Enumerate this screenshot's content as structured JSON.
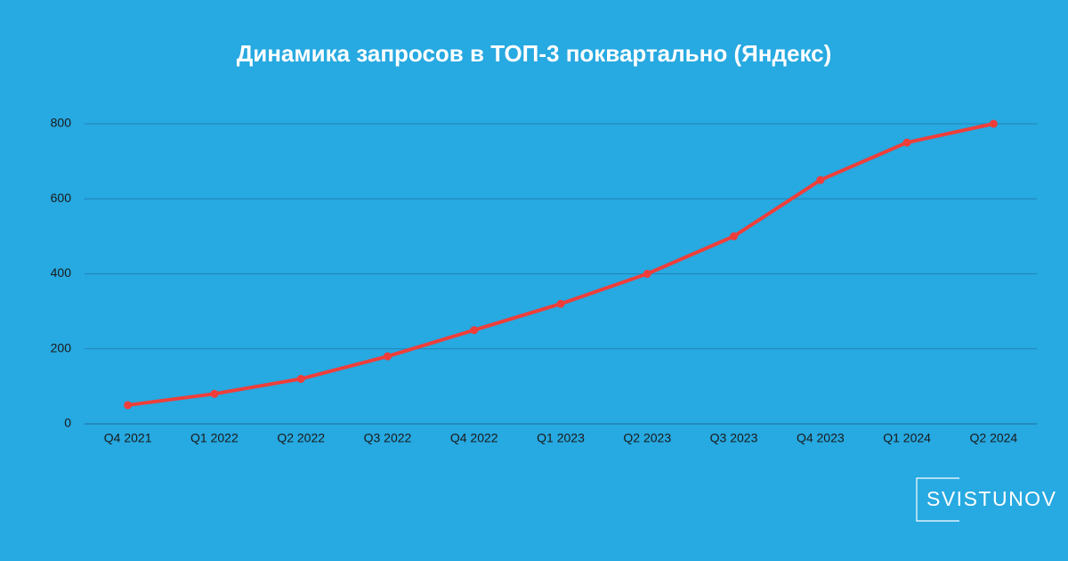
{
  "chart_data": {
    "type": "line",
    "title": "Динамика запросов в ТОП-3 поквартально (Яндекс)",
    "categories": [
      "Q4 2021",
      "Q1 2022",
      "Q2 2022",
      "Q3 2022",
      "Q4 2022",
      "Q1 2023",
      "Q2 2023",
      "Q3 2023",
      "Q4 2023",
      "Q1 2024",
      "Q2 2024"
    ],
    "values": [
      50,
      80,
      120,
      180,
      250,
      320,
      400,
      500,
      650,
      750,
      800
    ],
    "color": "#ef3e3a",
    "ylim": [
      0,
      800
    ],
    "yticks": [
      0,
      200,
      400,
      600,
      800
    ],
    "grid": true
  },
  "logo": "SVISTUNOV"
}
